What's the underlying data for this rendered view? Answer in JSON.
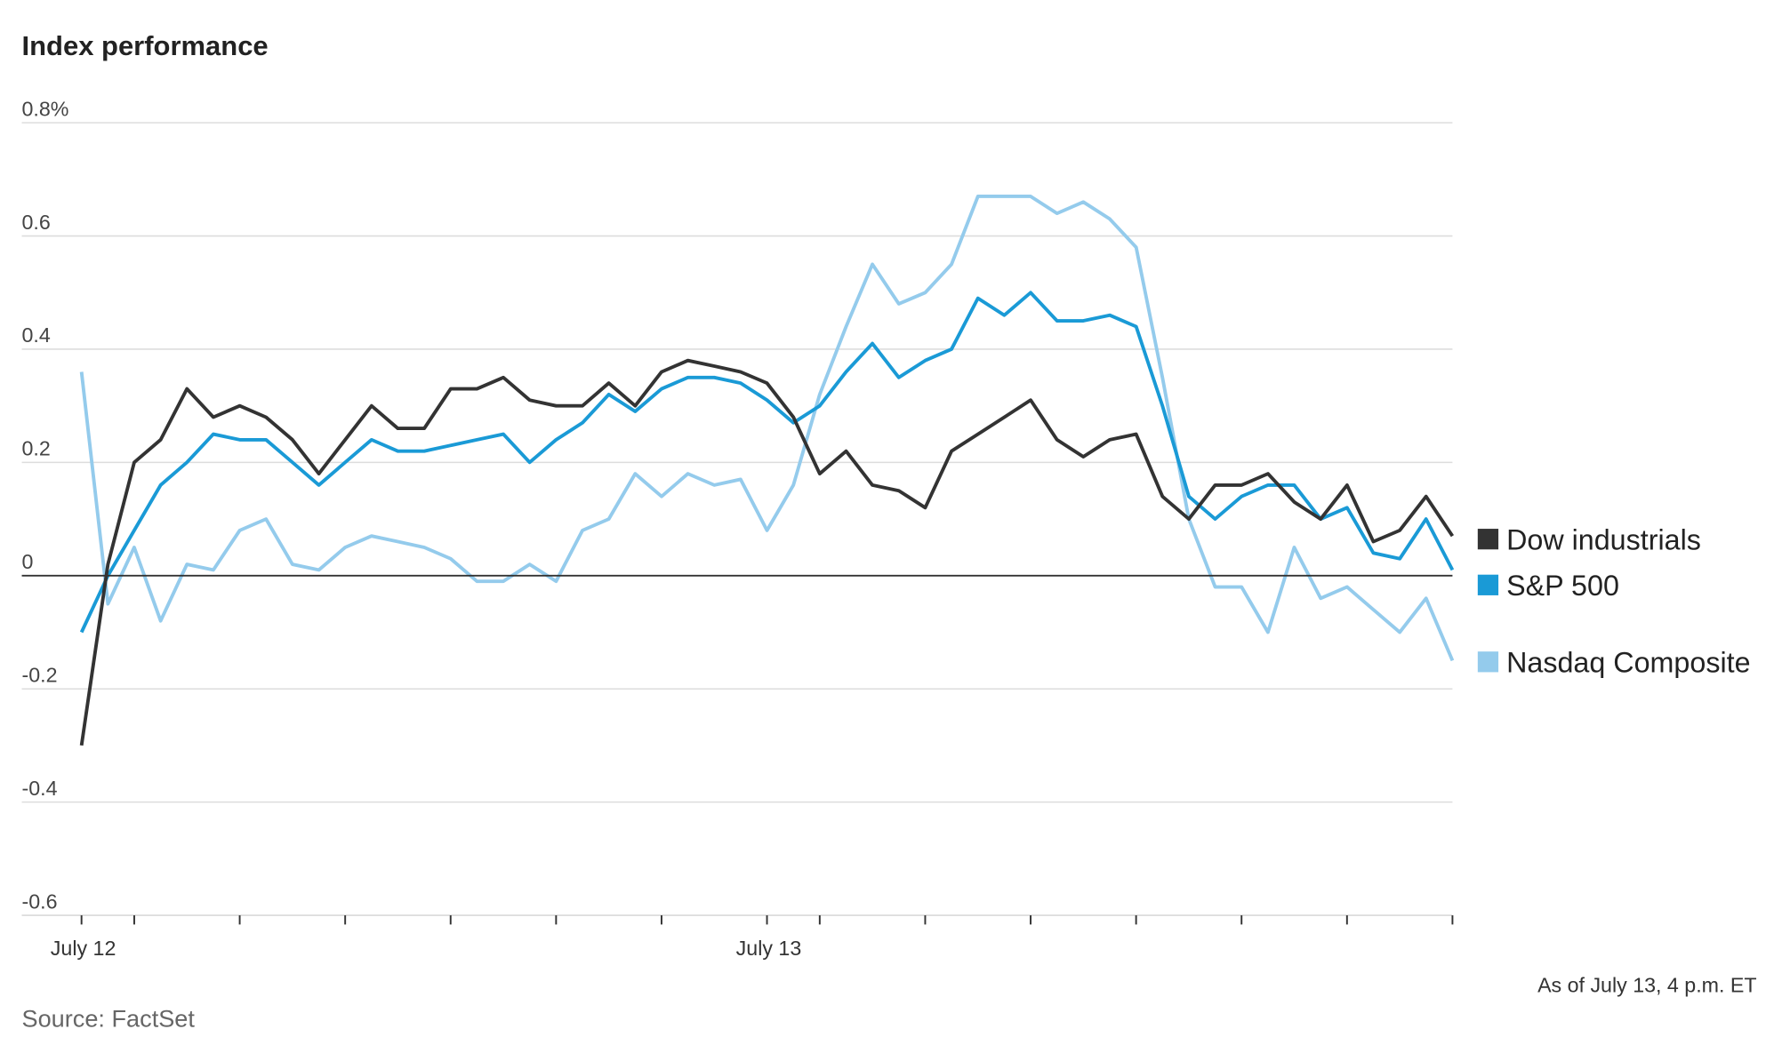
{
  "chart_data": {
    "type": "line",
    "title": "Index performance",
    "source": "Source: FactSet",
    "note": "As of July 13, 4 p.m. ET",
    "categories": [
      "July 12",
      null,
      null,
      null,
      null,
      null,
      null,
      null,
      null,
      null,
      null,
      null,
      null,
      null,
      null,
      null,
      null,
      null,
      null,
      null,
      null,
      null,
      null,
      null,
      null,
      null,
      "July 13",
      null,
      null,
      null,
      null,
      null,
      null,
      null,
      null,
      null,
      null,
      null,
      null,
      null,
      null,
      null,
      null,
      null,
      null,
      null,
      null,
      null,
      null,
      null,
      null,
      null,
      null
    ],
    "xticks": [
      0,
      2,
      6,
      10,
      14,
      18,
      22,
      26,
      28,
      32,
      36,
      40,
      44,
      48,
      52
    ],
    "ylim": [
      -0.6,
      0.8
    ],
    "yticks": [
      {
        "value": 0.8,
        "label": "0.8%"
      },
      0.6,
      0.4,
      0.2,
      0,
      -0.2,
      -0.4,
      -0.6
    ],
    "grid": true,
    "legend": "right",
    "series": [
      {
        "name": "Dow industrials",
        "color": "#333333",
        "values": [
          -0.3,
          0.02,
          0.2,
          0.24,
          0.33,
          0.28,
          0.3,
          0.28,
          0.24,
          0.18,
          0.24,
          0.3,
          0.26,
          0.26,
          0.33,
          0.33,
          0.35,
          0.31,
          0.3,
          0.3,
          0.34,
          0.3,
          0.36,
          0.38,
          0.37,
          0.36,
          0.34,
          0.28,
          0.18,
          0.22,
          0.16,
          0.15,
          0.12,
          0.22,
          0.25,
          0.28,
          0.31,
          0.24,
          0.21,
          0.24,
          0.25,
          0.14,
          0.1,
          0.16,
          0.16,
          0.18,
          0.13,
          0.1,
          0.16,
          0.06,
          0.08,
          0.14,
          0.07
        ]
      },
      {
        "name": "S&P 500",
        "color": "#1a9ad6",
        "values": [
          -0.1,
          0.0,
          0.08,
          0.16,
          0.2,
          0.25,
          0.24,
          0.24,
          0.2,
          0.16,
          0.2,
          0.24,
          0.22,
          0.22,
          0.23,
          0.24,
          0.25,
          0.2,
          0.24,
          0.27,
          0.32,
          0.29,
          0.33,
          0.35,
          0.35,
          0.34,
          0.31,
          0.27,
          0.3,
          0.36,
          0.41,
          0.35,
          0.38,
          0.4,
          0.49,
          0.46,
          0.5,
          0.45,
          0.45,
          0.46,
          0.44,
          0.3,
          0.14,
          0.1,
          0.14,
          0.16,
          0.16,
          0.1,
          0.12,
          0.04,
          0.03,
          0.1,
          0.01
        ]
      },
      {
        "name": "Nasdaq Composite",
        "color": "#94cbec",
        "values": [
          0.36,
          -0.05,
          0.05,
          -0.08,
          0.02,
          0.01,
          0.08,
          0.1,
          0.02,
          0.01,
          0.05,
          0.07,
          0.06,
          0.05,
          0.03,
          -0.01,
          -0.01,
          0.02,
          -0.01,
          0.08,
          0.1,
          0.18,
          0.14,
          0.18,
          0.16,
          0.17,
          0.08,
          0.16,
          0.32,
          0.44,
          0.55,
          0.48,
          0.5,
          0.55,
          0.67,
          0.67,
          0.67,
          0.64,
          0.66,
          0.63,
          0.58,
          0.35,
          0.1,
          -0.02,
          -0.02,
          -0.1,
          0.05,
          -0.04,
          -0.02,
          -0.06,
          -0.1,
          -0.04,
          -0.15
        ]
      }
    ]
  }
}
